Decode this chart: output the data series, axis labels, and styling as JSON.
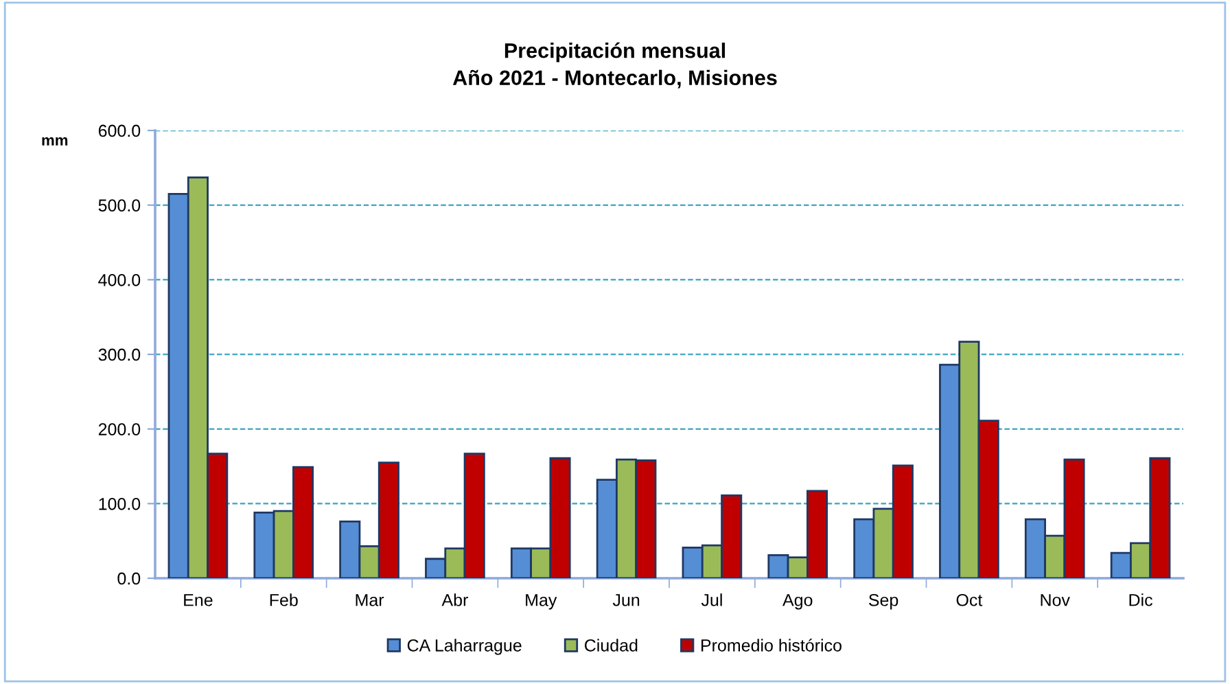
{
  "chart_data": {
    "type": "bar",
    "title": "Precipitación mensual\nAño 2021 - Montecarlo, Misiones",
    "ylabel": "mm",
    "categories": [
      "Ene",
      "Feb",
      "Mar",
      "Abr",
      "May",
      "Jun",
      "Jul",
      "Ago",
      "Sep",
      "Oct",
      "Nov",
      "Dic"
    ],
    "series": [
      {
        "name": "CA Laharrague",
        "color": "#558ed5",
        "values": [
          515,
          88,
          76,
          26,
          40,
          132,
          41,
          31,
          79,
          286,
          79,
          34
        ]
      },
      {
        "name": "Ciudad",
        "color": "#9bbb59",
        "values": [
          537,
          90,
          43,
          40,
          40,
          159,
          44,
          28,
          93,
          317,
          57,
          47
        ]
      },
      {
        "name": "Promedio histórico",
        "color": "#c00000",
        "values": [
          167,
          149,
          155,
          167,
          161,
          158,
          111,
          117,
          151,
          211,
          159,
          161
        ]
      }
    ],
    "ylim": [
      0,
      600
    ],
    "yticks": [
      {
        "value": 0,
        "label": "0.0"
      },
      {
        "value": 100,
        "label": "100.0"
      },
      {
        "value": 200,
        "label": "200.0"
      },
      {
        "value": 300,
        "label": "300.0"
      },
      {
        "value": 400,
        "label": "400.0"
      },
      {
        "value": 500,
        "label": "500.0"
      },
      {
        "value": 600,
        "label": "600.0"
      }
    ],
    "grid": "y",
    "legend": "bottom"
  }
}
